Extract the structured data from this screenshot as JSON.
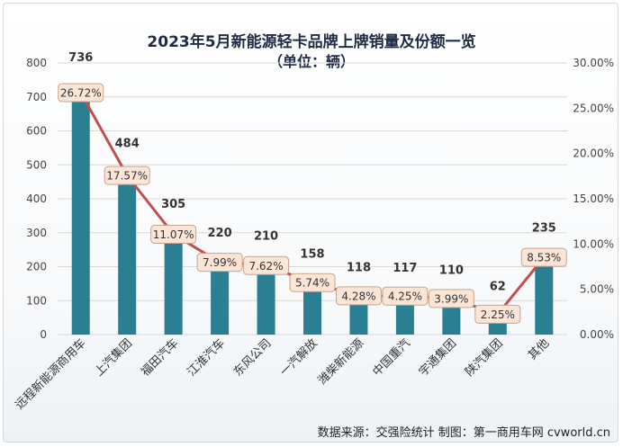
{
  "chart_data": {
    "type": "bar",
    "title": "2023年5月新能源轻卡品牌上牌销量及份额一览",
    "subtitle": "（单位：辆）",
    "categories": [
      "远程新能源商用车",
      "上汽集团",
      "福田汽车",
      "江淮汽车",
      "东风公司",
      "一汽解放",
      "潍柴新能源",
      "中国重汽",
      "宇通集团",
      "陕汽集团",
      "其他"
    ],
    "series": [
      {
        "type": "bar",
        "values": [
          736,
          484,
          305,
          220,
          210,
          158,
          118,
          117,
          110,
          62,
          235
        ],
        "color": "#2a7f93",
        "axis": "left"
      },
      {
        "type": "line",
        "values": [
          26.72,
          17.57,
          11.07,
          7.99,
          7.62,
          5.74,
          4.28,
          4.25,
          3.99,
          2.25,
          8.53
        ],
        "color": "#c0504d",
        "axis": "right"
      }
    ],
    "bar_labels": [
      "736",
      "484",
      "305",
      "220",
      "210",
      "158",
      "118",
      "117",
      "110",
      "62",
      "235"
    ],
    "line_labels": [
      "26.72%",
      "17.57%",
      "11.07%",
      "7.99%",
      "7.62%",
      "5.74%",
      "4.28%",
      "4.25%",
      "3.99%",
      "2.25%",
      "8.53%"
    ],
    "y_left": {
      "min": 0,
      "max": 800,
      "ticks": [
        "0",
        "100",
        "200",
        "300",
        "400",
        "500",
        "600",
        "700",
        "800"
      ]
    },
    "y_right": {
      "min": 0,
      "max": 30,
      "ticks": [
        "0.00%",
        "5.00%",
        "10.00%",
        "15.00%",
        "20.00%",
        "25.00%",
        "30.00%"
      ]
    },
    "grid": true,
    "legend": "none"
  },
  "footer": "数据来源：交强险统计 制图：第一商用车网 cvworld.cn"
}
